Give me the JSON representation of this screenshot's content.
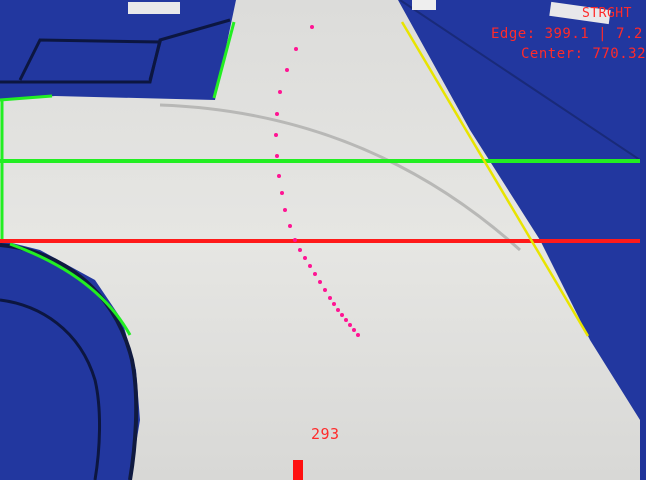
{
  "hud": {
    "status_label": "STRGHT",
    "edge_readout": "Edge: 399.1 | 7.2",
    "center_readout": "Center: 770.32",
    "bottom_value": "293"
  },
  "colors": {
    "mat_blue": "#22379f",
    "floor_white": "#e3e3e1",
    "guide_green": "#22ee22",
    "guide_red": "#ff1a1a",
    "edge_yellow": "#e8e400",
    "path_magenta": "#ff1493"
  }
}
